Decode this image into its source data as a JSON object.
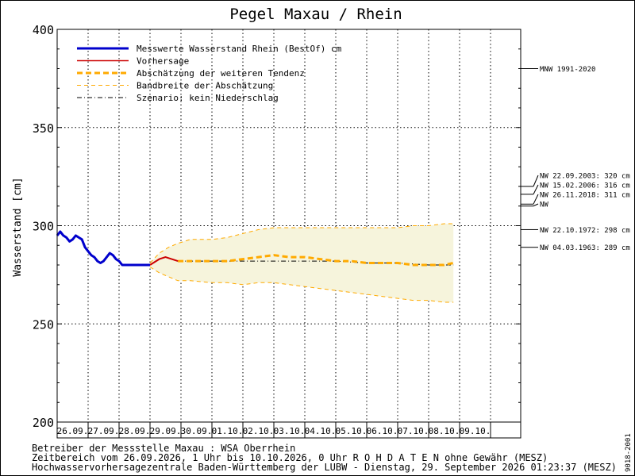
{
  "chart_data": {
    "type": "line",
    "title": "Pegel Maxau / Rhein",
    "ylabel": "Wasserstand [cm]",
    "xlabel": "",
    "ylim": [
      200,
      400
    ],
    "yticks": [
      200,
      250,
      300,
      350,
      400
    ],
    "grid": true,
    "legend_position": "top-left",
    "x_ticklabels": [
      "26.09.",
      "27.09.",
      "28.09.",
      "29.09.",
      "30.09.",
      "01.10.",
      "02.10.",
      "03.10.",
      "04.10.",
      "05.10.",
      "06.10.",
      "07.10.",
      "08.10.",
      "09.10."
    ],
    "series": [
      {
        "name": "Messwerte Wasserstand Rhein (BestOf)  cm",
        "color": "#0000cc",
        "x": [
          0.0,
          0.1,
          0.2,
          0.3,
          0.4,
          0.5,
          0.6,
          0.7,
          0.8,
          0.9,
          1.0,
          1.1,
          1.2,
          1.3,
          1.4,
          1.5,
          1.6,
          1.7,
          1.8,
          1.9,
          2.0,
          2.1,
          2.2,
          2.3,
          2.4,
          2.5,
          2.6,
          2.7,
          2.8,
          2.9,
          3.0
        ],
        "y": [
          295,
          297,
          295,
          294,
          292,
          293,
          295,
          294,
          293,
          289,
          287,
          285,
          284,
          282,
          281,
          282,
          284,
          286,
          285,
          283,
          282,
          280,
          280,
          280,
          280,
          280,
          280,
          280,
          280,
          280,
          280
        ]
      },
      {
        "name": "Vorhersage",
        "color": "#cc0000",
        "x": [
          3.0,
          3.1,
          3.3,
          3.5,
          3.7,
          3.9
        ],
        "y": [
          280,
          281,
          283,
          284,
          283,
          282
        ]
      },
      {
        "name": "Abschätzung der weiteren Tendenz",
        "color": "#ffaa00",
        "x": [
          3.9,
          4.5,
          5.0,
          5.5,
          6.0,
          6.5,
          7.0,
          7.5,
          8.0,
          8.5,
          9.0,
          9.5,
          10.0,
          10.5,
          11.0,
          11.5,
          12.0,
          12.5,
          12.8
        ],
        "y": [
          282,
          282,
          282,
          282,
          283,
          284,
          285,
          284,
          284,
          283,
          282,
          282,
          281,
          281,
          281,
          280,
          280,
          280,
          281
        ]
      },
      {
        "name": "Bandbreite der Abschätzung",
        "color": "#ffaa00",
        "upper_x": [
          3.0,
          3.3,
          3.6,
          3.9,
          4.3,
          5.0,
          5.5,
          6.0,
          6.5,
          7.0,
          7.5,
          8.0,
          8.5,
          9.0,
          9.5,
          10.0,
          10.5,
          11.0,
          11.5,
          12.0,
          12.5,
          12.8
        ],
        "upper_y": [
          281,
          286,
          289,
          291,
          293,
          293,
          294,
          296,
          298,
          299,
          299,
          299,
          299,
          299,
          299,
          299,
          299,
          299,
          300,
          300,
          301,
          301
        ],
        "lower_x": [
          3.0,
          3.3,
          3.6,
          3.9,
          4.3,
          5.0,
          5.5,
          6.0,
          6.5,
          7.0,
          7.5,
          8.0,
          8.5,
          9.0,
          9.5,
          10.0,
          10.5,
          11.0,
          11.5,
          12.0,
          12.5,
          12.8
        ],
        "lower_y": [
          279,
          276,
          274,
          272,
          272,
          271,
          271,
          270,
          271,
          271,
          270,
          269,
          268,
          267,
          266,
          265,
          264,
          263,
          262,
          262,
          261,
          261
        ]
      },
      {
        "name": "Szenario: kein Niederschlag",
        "color": "#000000",
        "x": [
          3.9,
          5.0,
          6.0,
          7.0,
          8.0,
          9.0,
          10.0,
          11.0,
          12.0,
          12.8
        ],
        "y": [
          282,
          282,
          282,
          282,
          282,
          282,
          281,
          281,
          280,
          280
        ]
      }
    ],
    "reference_lines": [
      {
        "label": "MNW 1991-2020",
        "value": 380
      },
      {
        "label": "NW 22.09.2003: 320 cm",
        "value": 320
      },
      {
        "label": "NW 15.02.2006: 316 cm",
        "value": 316
      },
      {
        "label": "NW 26.11.2018: 311 cm",
        "value": 311
      },
      {
        "label": "NW",
        "value": 310
      },
      {
        "label": "NW 22.10.1972: 298 cm",
        "value": 298
      },
      {
        "label": "NW 04.03.1963: 289 cm",
        "value": 289
      }
    ]
  },
  "footer": {
    "line1": "Betreiber der Messstelle Maxau : WSA Oberrhein",
    "line2": "Zeitbereich vom 26.09.2026, 1 Uhr bis 10.10.2026, 0 Uhr   R O H D A T E N ohne Gewähr (MESZ)",
    "line3": "Hochwasservorhersagezentrale Baden-Württemberg der LUBW - Dienstag, 29. September 2026 01:23:37 (MESZ)"
  },
  "side_code": "9018-2001"
}
